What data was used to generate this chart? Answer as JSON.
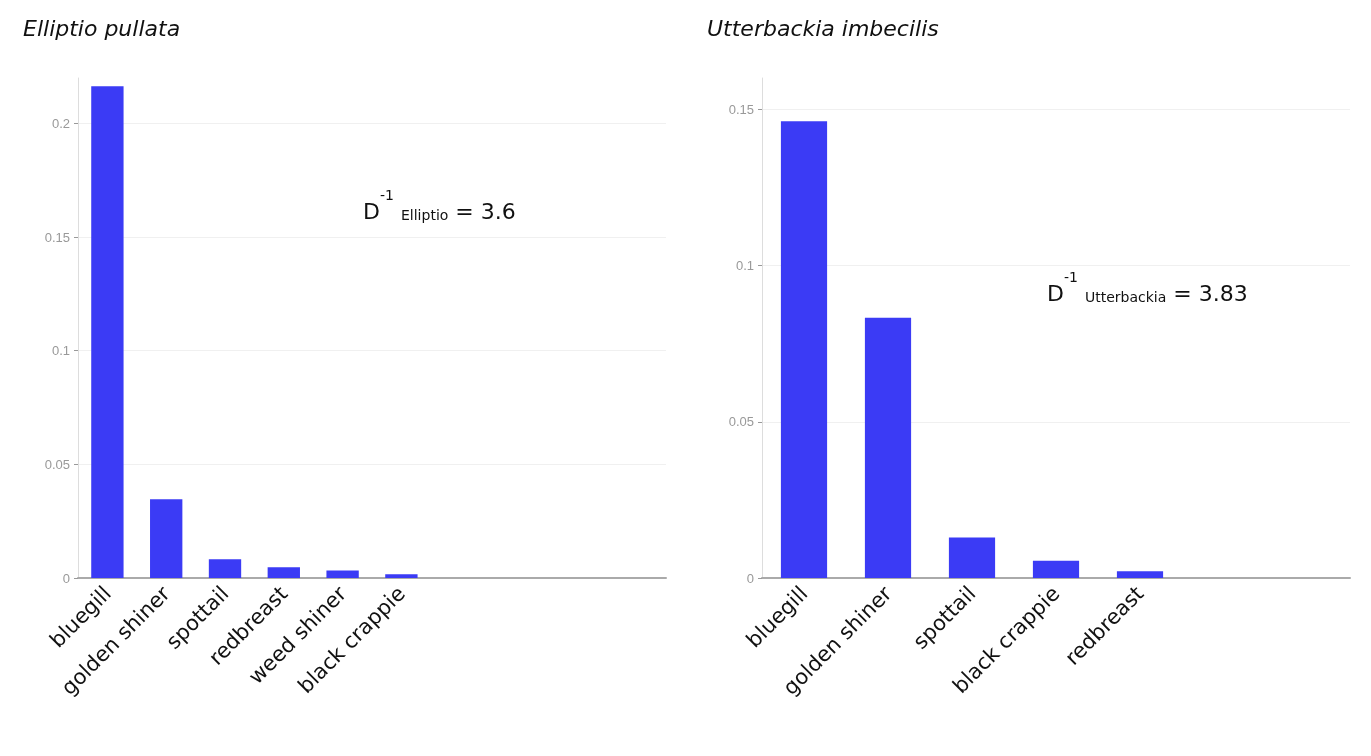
{
  "chart_data": [
    {
      "type": "bar",
      "title": "Elliptio pullata",
      "categories": [
        "bluegill",
        "golden shiner",
        "spottail",
        "redbreast",
        "weed shiner",
        "black crappie",
        null,
        null,
        null,
        null
      ],
      "values": [
        0.2164,
        0.0347,
        0.0082,
        0.0047,
        0.0033,
        0.0016,
        null,
        null,
        null,
        null
      ],
      "color": "#3b3bf5",
      "ylim": [
        0,
        0.22
      ],
      "yticks": [
        0,
        0.05,
        0.1,
        0.15,
        0.2
      ],
      "grid": "y",
      "annotations": [
        "D$^{-1}$ $_{Elliptio}$ = 3.6"
      ]
    },
    {
      "type": "bar",
      "title": "Utterbackia imbecilis",
      "categories": [
        "bluegill",
        "golden shiner",
        "spottail",
        "black crappie",
        "redbreast",
        null,
        null
      ],
      "values": [
        0.1462,
        0.0833,
        0.013,
        0.0055,
        0.0022,
        null,
        null
      ],
      "color": "#3b3bf5",
      "ylim": [
        0,
        0.16
      ],
      "yticks": [
        0,
        0.05,
        0.1,
        0.15
      ],
      "grid": "y",
      "annotations": [
        "D$^{-1}$ $_{Utterbackia}$ = 3.83"
      ]
    }
  ]
}
